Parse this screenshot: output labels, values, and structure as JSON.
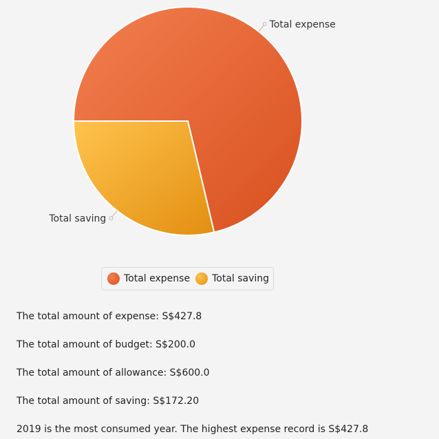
{
  "chart_data": {
    "type": "pie",
    "categories": [
      "Total expense",
      "Total saving"
    ],
    "values": [
      427.8,
      172.2
    ],
    "colors": [
      "#e2572b",
      "#f0a82a"
    ],
    "slice_gradients": [
      [
        "#f27f50",
        "#d9501f"
      ],
      [
        "#ffc34e",
        "#e28f10"
      ]
    ],
    "legend_placement": "bottom",
    "title": ""
  },
  "legend": {
    "items": [
      {
        "label": "Total expense",
        "color": "#e2572b"
      },
      {
        "label": "Total saving",
        "color": "#f0a82a"
      }
    ]
  },
  "summary": {
    "expense_line": "The total amount of expense: S$427.8",
    "budget_line": "The total amount of budget: S$200.0",
    "allowance_line": "The total amount of allowance: S$600.0",
    "saving_line": "The total amount of saving: S$172.20",
    "most_consumed_line": "2019 is the most consumed year. The highest expense record is S$427.8"
  }
}
